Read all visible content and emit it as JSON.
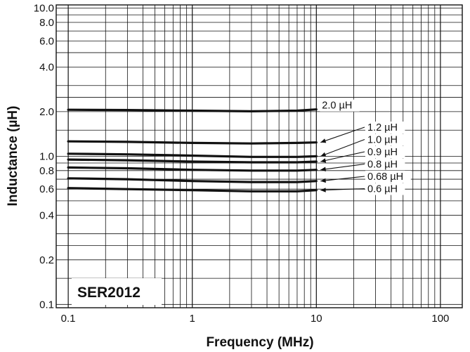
{
  "chart_data": {
    "type": "line",
    "title": "",
    "inset_label": "SER2012",
    "xlabel": "Frequency (MHz)",
    "ylabel": "Inductance (µH)",
    "xscale": "log",
    "yscale": "log",
    "xlim": [
      0.08,
      150
    ],
    "ylim": [
      0.095,
      10.5
    ],
    "x_ticks": [
      0.1,
      1,
      10,
      100
    ],
    "x_tick_labels": [
      "0.1",
      "1",
      "10",
      "100"
    ],
    "y_ticks": [
      0.1,
      0.2,
      0.4,
      0.6,
      0.8,
      1.0,
      2.0,
      4.0,
      6.0,
      8.0,
      10.0
    ],
    "y_tick_labels": [
      "0.1",
      "0.2",
      "0.4",
      "0.6",
      "0.8",
      "1.0",
      "2.0",
      "4.0",
      "6.0",
      "8.0",
      "10.0"
    ],
    "grid": true,
    "series": [
      {
        "name": "2.0 µH",
        "x": [
          0.1,
          0.3,
          1,
          3,
          7,
          10
        ],
        "y": [
          2.06,
          2.05,
          2.03,
          2.01,
          2.03,
          2.07
        ]
      },
      {
        "name": "1.2 µH",
        "x": [
          0.1,
          0.3,
          1,
          3,
          7,
          10
        ],
        "y": [
          1.26,
          1.25,
          1.23,
          1.22,
          1.23,
          1.24
        ]
      },
      {
        "name": "1.0 µH",
        "x": [
          0.1,
          0.3,
          1,
          3,
          7,
          10
        ],
        "y": [
          1.04,
          1.03,
          1.01,
          0.99,
          0.99,
          1.0
        ]
      },
      {
        "name": "0.9 µH",
        "x": [
          0.1,
          0.3,
          1,
          3,
          7,
          10
        ],
        "y": [
          0.95,
          0.94,
          0.92,
          0.91,
          0.91,
          0.92
        ]
      },
      {
        "name": "0.8 µH",
        "x": [
          0.1,
          0.3,
          1,
          3,
          7,
          10
        ],
        "y": [
          0.84,
          0.83,
          0.81,
          0.8,
          0.8,
          0.81
        ]
      },
      {
        "name": "0.68 µH",
        "x": [
          0.1,
          0.3,
          1,
          3,
          7,
          10
        ],
        "y": [
          0.71,
          0.7,
          0.68,
          0.67,
          0.67,
          0.68
        ]
      },
      {
        "name": "0.6 µH",
        "x": [
          0.1,
          0.3,
          1,
          3,
          7,
          10
        ],
        "y": [
          0.61,
          0.6,
          0.59,
          0.58,
          0.58,
          0.59
        ]
      }
    ]
  }
}
